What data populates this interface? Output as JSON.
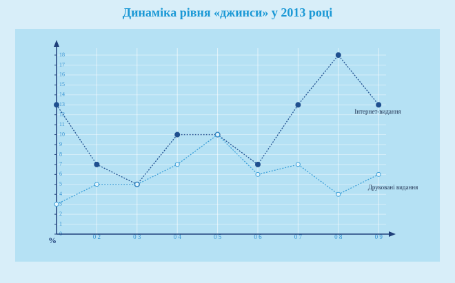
{
  "chart_data": {
    "type": "line",
    "title": "Динаміка рівня «джинси» у 2013 році",
    "y_label": "%",
    "categories": [
      null,
      "0 2",
      "0 3",
      "0 4",
      "0 5",
      "0 6",
      "0 7",
      "0 8",
      "0 9"
    ],
    "series": [
      {
        "name": "Інтернет-видання",
        "color": "#1f4f8f",
        "values": [
          13,
          7,
          5,
          10,
          10,
          7,
          13,
          18,
          13
        ]
      },
      {
        "name": "Друковані видання",
        "color": "#3b9fd8",
        "values": [
          3,
          5,
          5,
          7,
          10,
          6,
          7,
          4,
          6
        ]
      }
    ],
    "ylim": [
      0,
      18
    ],
    "yticks": [
      0,
      1,
      2,
      3,
      4,
      5,
      6,
      7,
      8,
      9,
      10,
      11,
      12,
      13,
      14,
      15,
      16,
      17,
      18
    ],
    "grid": true
  }
}
